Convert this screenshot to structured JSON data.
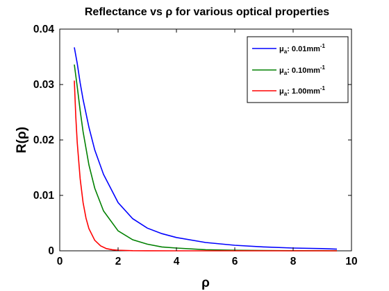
{
  "chart_data": {
    "type": "line",
    "title": "Reflectance vs ρ for various optical properties",
    "xlabel": "ρ",
    "ylabel": "R(ρ)",
    "xlim": [
      0,
      10
    ],
    "ylim": [
      0,
      0.04
    ],
    "xticks": [
      "0",
      "2",
      "4",
      "6",
      "8",
      "10"
    ],
    "yticks": [
      "0",
      "0.01",
      "0.02",
      "0.03",
      "0.04"
    ],
    "grid": false,
    "legend_position": "top-right",
    "series": [
      {
        "name_symbol": "μ",
        "name_sub": "a",
        "name_value": ": 0.01mm",
        "name_sup": "-1",
        "color": "#0000ff",
        "x": [
          0.5,
          0.6,
          0.7,
          0.8,
          1.0,
          1.2,
          1.5,
          2.0,
          2.5,
          3.0,
          3.5,
          4.0,
          5.0,
          6.0,
          7.0,
          8.0,
          9.0,
          9.5
        ],
        "y": [
          0.0367,
          0.0338,
          0.0303,
          0.0273,
          0.0223,
          0.0182,
          0.0138,
          0.0087,
          0.0058,
          0.0041,
          0.0031,
          0.0024,
          0.0015,
          0.001,
          0.0007,
          0.0005,
          0.0004,
          0.0003
        ]
      },
      {
        "name_symbol": "μ",
        "name_sub": "a",
        "name_value": ": 0.10mm",
        "name_sup": "-1",
        "color": "#008000",
        "x": [
          0.5,
          0.6,
          0.7,
          0.8,
          1.0,
          1.2,
          1.5,
          2.0,
          2.5,
          3.0,
          3.5,
          4.0,
          5.0,
          6.0,
          7.0,
          8.0,
          9.0,
          9.5
        ],
        "y": [
          0.0336,
          0.0296,
          0.0253,
          0.0215,
          0.0155,
          0.0113,
          0.0072,
          0.0036,
          0.002,
          0.0012,
          0.0007,
          0.0005,
          0.0002,
          0.0001,
          5e-05,
          3e-05,
          2e-05,
          1e-05
        ]
      },
      {
        "name_symbol": "μ",
        "name_sub": "a",
        "name_value": ": 1.00mm",
        "name_sup": "-1",
        "color": "#ff0000",
        "x": [
          0.5,
          0.55,
          0.6,
          0.7,
          0.8,
          0.9,
          1.0,
          1.2,
          1.4,
          1.6,
          1.8,
          2.0,
          2.5,
          3.0,
          4.0,
          5.0,
          6.0,
          8.0,
          9.5
        ],
        "y": [
          0.0307,
          0.0242,
          0.0195,
          0.013,
          0.0087,
          0.0059,
          0.004,
          0.0019,
          0.0009,
          0.0004,
          0.0002,
          0.0001,
          3e-05,
          1e-05,
          0,
          0,
          0,
          0,
          0
        ]
      }
    ]
  }
}
